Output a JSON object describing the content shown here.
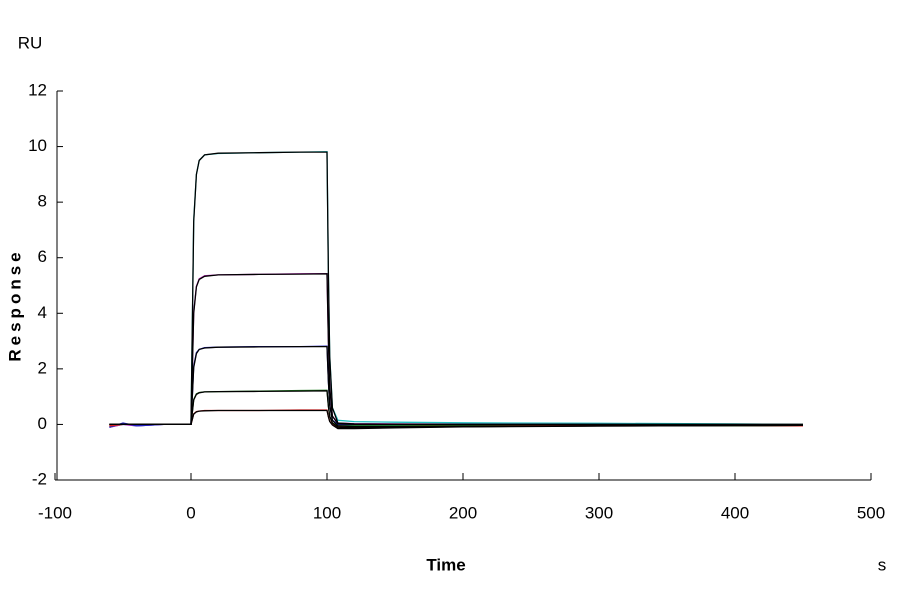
{
  "chart_data": {
    "type": "line",
    "y_label": "Response",
    "y_unit": "RU",
    "x_label": "Time",
    "x_unit": "s",
    "xlim": [
      -100,
      500
    ],
    "xticks": [
      -100,
      0,
      100,
      200,
      300,
      400,
      500
    ],
    "ylim": [
      -2,
      12
    ],
    "yticks": [
      -2,
      0,
      2,
      4,
      6,
      8,
      10,
      12
    ],
    "grid": false,
    "x": [
      -60,
      -50,
      -40,
      -20,
      -5,
      0,
      2,
      4,
      6,
      10,
      20,
      50,
      80,
      100,
      101,
      102,
      104,
      108,
      120,
      150,
      200,
      300,
      400,
      450
    ],
    "series": [
      {
        "color": "#20c0c0",
        "values": [
          -0.1,
          0,
          -0.05,
          0,
          0,
          0,
          7.35,
          9.0,
          9.5,
          9.7,
          9.75,
          9.78,
          9.8,
          9.82,
          5.4,
          2.5,
          0.6,
          0.15,
          0.1,
          0.08,
          0.06,
          0.04,
          0.02,
          0
        ]
      },
      {
        "color": "#c020c0",
        "values": [
          -0.1,
          0,
          -0.05,
          0,
          0,
          0,
          4.05,
          4.97,
          5.24,
          5.35,
          5.38,
          5.4,
          5.42,
          5.43,
          3.0,
          1.35,
          0.3,
          0.05,
          0.03,
          0.02,
          0.01,
          0,
          -0.02,
          -0.05
        ]
      },
      {
        "color": "#2020c0",
        "values": [
          -0.1,
          0.05,
          -0.05,
          0,
          0,
          0,
          2.1,
          2.58,
          2.7,
          2.76,
          2.78,
          2.8,
          2.8,
          2.82,
          1.55,
          0.7,
          0.15,
          0,
          -0.03,
          -0.03,
          -0.03,
          -0.04,
          -0.05,
          -0.05
        ]
      },
      {
        "color": "#208020",
        "values": [
          -0.05,
          0,
          0,
          0,
          0,
          0,
          0.9,
          1.1,
          1.15,
          1.17,
          1.18,
          1.2,
          1.22,
          1.23,
          0.66,
          0.3,
          0.05,
          -0.05,
          -0.05,
          -0.05,
          -0.04,
          -0.04,
          -0.05,
          -0.05
        ]
      },
      {
        "color": "#e02020",
        "values": [
          -0.05,
          0,
          0,
          0,
          0,
          0,
          0.38,
          0.46,
          0.48,
          0.5,
          0.5,
          0.5,
          0.52,
          0.52,
          0.28,
          0.12,
          0,
          -0.1,
          -0.1,
          -0.08,
          -0.06,
          -0.04,
          -0.04,
          -0.05
        ]
      },
      {
        "color": "#000000",
        "values": [
          0,
          0,
          0,
          0,
          0,
          0,
          7.3,
          9.0,
          9.5,
          9.7,
          9.76,
          9.78,
          9.8,
          9.8,
          5.4,
          2.45,
          0.6,
          0.05,
          0.02,
          0.01,
          0,
          0,
          0,
          0
        ]
      },
      {
        "color": "#000000",
        "values": [
          0,
          0,
          0,
          0,
          0,
          0,
          4.0,
          4.95,
          5.22,
          5.33,
          5.38,
          5.4,
          5.41,
          5.42,
          2.98,
          1.33,
          0.3,
          0.02,
          0,
          0,
          0,
          0,
          0,
          0
        ]
      },
      {
        "color": "#000000",
        "values": [
          0,
          0,
          0,
          0,
          0,
          0,
          2.05,
          2.55,
          2.7,
          2.75,
          2.78,
          2.79,
          2.8,
          2.8,
          1.54,
          0.7,
          0.15,
          -0.05,
          -0.08,
          -0.08,
          -0.06,
          -0.05,
          -0.04,
          -0.03
        ]
      },
      {
        "color": "#000000",
        "values": [
          0,
          0,
          0,
          0,
          0,
          0,
          0.88,
          1.08,
          1.14,
          1.17,
          1.18,
          1.19,
          1.2,
          1.21,
          0.65,
          0.29,
          0.05,
          -0.1,
          -0.12,
          -0.1,
          -0.08,
          -0.05,
          -0.04,
          -0.03
        ]
      },
      {
        "color": "#000000",
        "values": [
          0,
          0,
          0,
          0,
          0,
          0,
          0.37,
          0.45,
          0.48,
          0.49,
          0.5,
          0.5,
          0.5,
          0.5,
          0.27,
          0.11,
          -0.02,
          -0.15,
          -0.15,
          -0.12,
          -0.09,
          -0.06,
          -0.04,
          -0.03
        ]
      }
    ]
  }
}
